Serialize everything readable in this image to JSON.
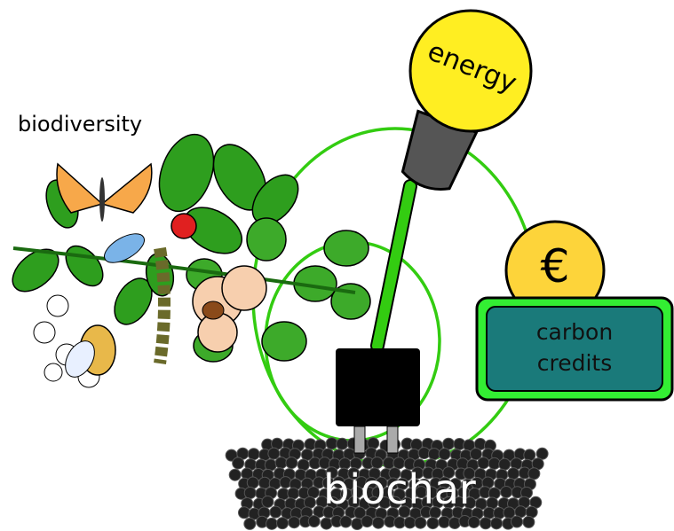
{
  "labels": {
    "biodiversity": "biodiversity",
    "energy": "energy",
    "currency": "€",
    "carbon_credits": [
      "carbon",
      "credits"
    ],
    "biochar": "biochar"
  }
}
